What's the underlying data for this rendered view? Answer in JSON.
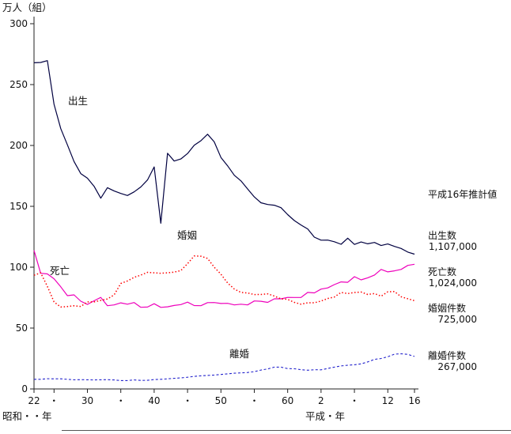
{
  "chart_data": {
    "type": "line",
    "title": "",
    "unit_label": "万人（組）",
    "x_axis_label_left": "昭和・・年",
    "x_axis_label_right": "平成・年",
    "ylim": [
      0,
      300
    ],
    "grid": false,
    "legend_position": "inline-labels",
    "y_ticks": [
      0,
      50,
      100,
      150,
      200,
      250,
      300
    ],
    "x_start_year": 1947,
    "x_end_year": 2004,
    "x_ticks": [
      {
        "year": 1947,
        "label": "22"
      },
      {
        "year": 1950,
        "label": "・"
      },
      {
        "year": 1955,
        "label": "30"
      },
      {
        "year": 1960,
        "label": "・"
      },
      {
        "year": 1965,
        "label": "40"
      },
      {
        "year": 1970,
        "label": "・"
      },
      {
        "year": 1975,
        "label": "50"
      },
      {
        "year": 1980,
        "label": "・"
      },
      {
        "year": 1985,
        "label": "60"
      },
      {
        "year": 1990,
        "label": "2"
      },
      {
        "year": 1995,
        "label": "・"
      },
      {
        "year": 2000,
        "label": "12"
      },
      {
        "year": 2004,
        "label": "16"
      }
    ],
    "series": [
      {
        "name": "出生",
        "color": "#000040",
        "style": "solid",
        "width": 1.2,
        "dash": "",
        "values": [
          267.9,
          268.2,
          269.7,
          233.8,
          213.8,
          200.5,
          186.8,
          176.9,
          173.1,
          166.5,
          156.7,
          165.3,
          162.6,
          160.6,
          158.9,
          161.9,
          165.9,
          171.7,
          182.4,
          136.1,
          193.6,
          187.2,
          188.9,
          193.4,
          200.1,
          203.9,
          209.2,
          203.0,
          190.1,
          183.3,
          175.5,
          170.9,
          164.3,
          157.7,
          152.9,
          151.5,
          150.9,
          148.9,
          143.2,
          138.3,
          134.7,
          131.4,
          124.7,
          122.2,
          122.3,
          120.9,
          118.8,
          123.8,
          118.7,
          120.7,
          119.2,
          120.3,
          117.8,
          119.1,
          117.1,
          115.4,
          112.4,
          110.7
        ]
      },
      {
        "name": "死亡",
        "color": "#ee00bb",
        "style": "solid",
        "width": 1.2,
        "dash": "",
        "values": [
          113.8,
          95.0,
          94.5,
          90.5,
          83.9,
          76.6,
          77.3,
          72.1,
          69.4,
          72.4,
          75.2,
          68.4,
          69.0,
          70.7,
          69.6,
          71.0,
          67.1,
          67.3,
          70.0,
          67.0,
          67.5,
          68.6,
          69.3,
          71.3,
          68.5,
          68.4,
          70.9,
          71.0,
          70.2,
          70.3,
          69.0,
          69.6,
          69.0,
          72.3,
          72.0,
          71.1,
          74.0,
          74.0,
          75.2,
          75.1,
          75.1,
          79.3,
          78.9,
          82.0,
          83.0,
          85.7,
          87.9,
          87.6,
          92.2,
          89.6,
          91.3,
          93.6,
          98.2,
          96.2,
          97.0,
          98.2,
          101.5,
          102.4
        ]
      },
      {
        "name": "婚姻",
        "color": "#ff0000",
        "style": "dotted",
        "width": 1.5,
        "dash": "1.5 2.5",
        "values": [
          93.4,
          95.4,
          84.2,
          71.5,
          67.3,
          67.7,
          68.3,
          67.7,
          71.5,
          71.5,
          72.7,
          73.9,
          77.3,
          86.6,
          88.7,
          91.7,
          93.5,
          95.8,
          95.4,
          95.0,
          95.4,
          96.0,
          97.2,
          102.9,
          109.2,
          109.0,
          107.2,
          100.0,
          94.2,
          87.1,
          82.1,
          79.3,
          78.8,
          77.5,
          77.6,
          78.1,
          76.3,
          74.0,
          73.6,
          71.1,
          69.6,
          70.8,
          70.8,
          72.2,
          74.3,
          75.5,
          79.3,
          78.3,
          79.2,
          79.6,
          77.6,
          78.4,
          76.2,
          79.8,
          80.0,
          75.7,
          74.1,
          72.5
        ]
      },
      {
        "name": "離婚",
        "color": "#2222cc",
        "style": "dashed",
        "width": 1.1,
        "dash": "3 2.5",
        "values": [
          7.9,
          7.9,
          8.4,
          8.3,
          8.3,
          7.9,
          7.5,
          7.6,
          7.5,
          7.4,
          7.5,
          7.6,
          7.4,
          6.9,
          6.9,
          7.4,
          7.0,
          7.1,
          7.7,
          7.9,
          8.3,
          8.7,
          9.1,
          9.6,
          10.3,
          10.8,
          11.1,
          11.4,
          11.9,
          12.4,
          12.9,
          13.2,
          13.5,
          14.2,
          15.5,
          16.4,
          17.9,
          17.9,
          16.7,
          16.6,
          15.8,
          15.4,
          15.8,
          15.7,
          16.8,
          17.9,
          18.9,
          19.5,
          19.9,
          20.6,
          22.2,
          24.3,
          25.0,
          26.4,
          28.6,
          28.9,
          28.4,
          26.7
        ]
      }
    ]
  },
  "annotations": {
    "estimate_title": "平成16年推計値",
    "items": [
      {
        "label": "出生数",
        "value": "1,107,000"
      },
      {
        "label": "死亡数",
        "value": "1,024,000"
      },
      {
        "label": "婚姻件数",
        "value": "725,000"
      },
      {
        "label": "離婚件数",
        "value": "267,000"
      }
    ]
  }
}
